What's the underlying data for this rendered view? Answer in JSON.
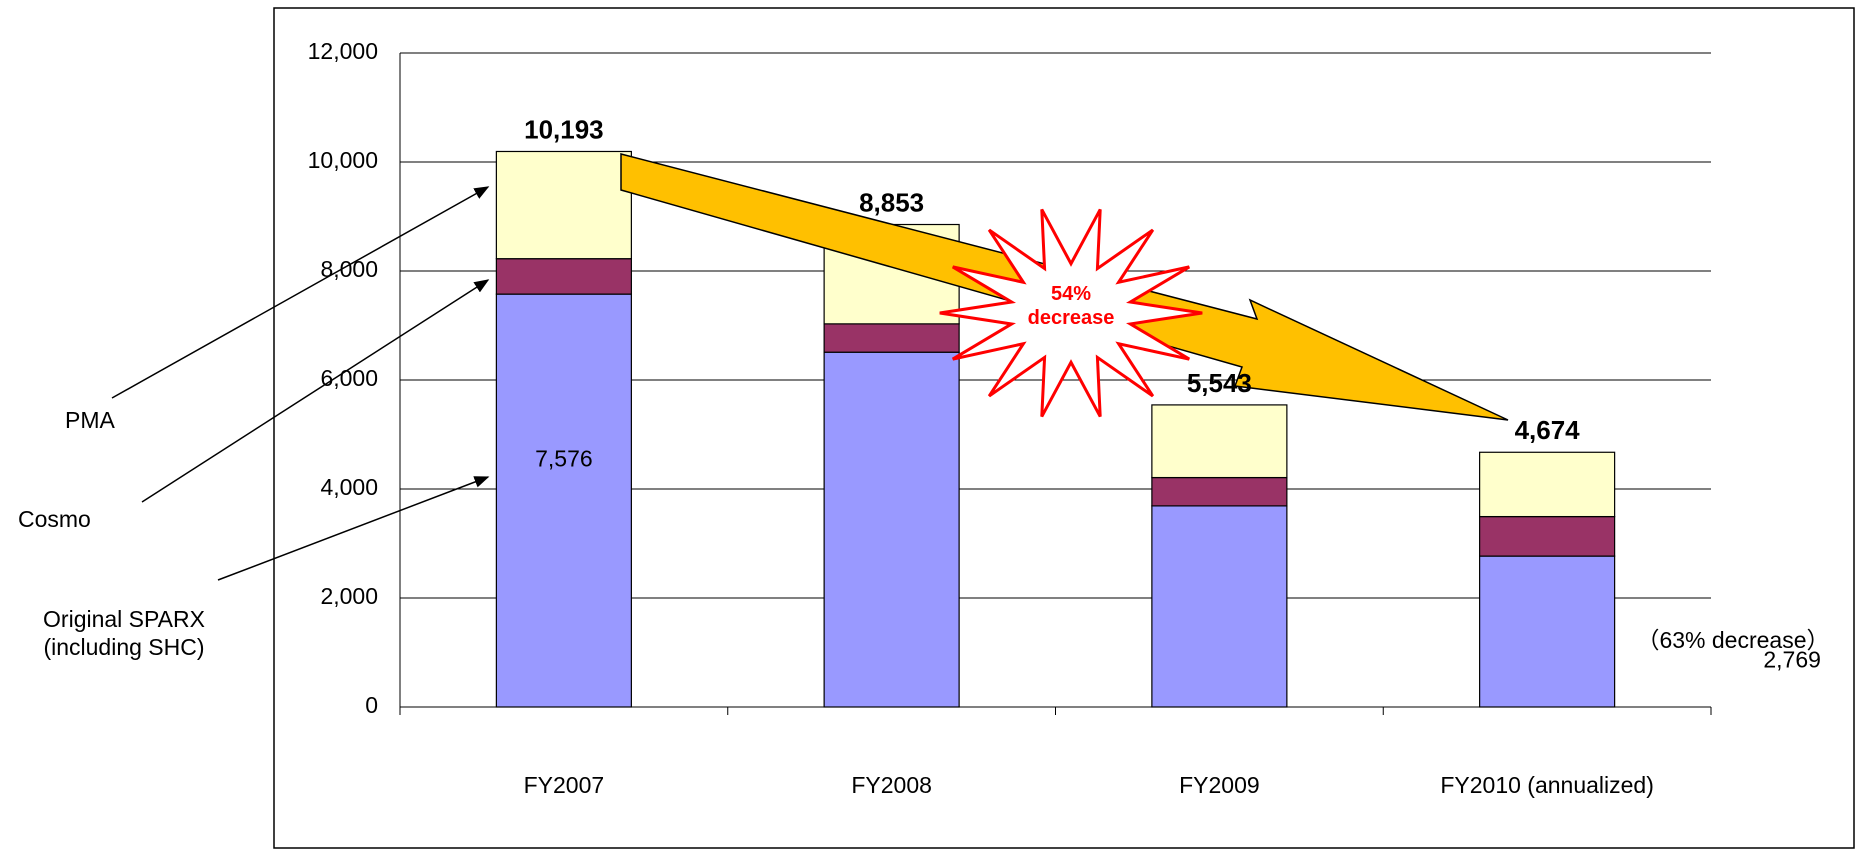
{
  "chart_data": {
    "type": "stacked_bar",
    "categories": [
      "FY2007",
      "FY2008",
      "FY2009",
      "FY2010 (annualized)"
    ],
    "series": [
      {
        "name": "Original SPARX (including SHC)",
        "color": "#9999ff",
        "values": [
          7576,
          6510,
          3690,
          2769
        ],
        "value_labels": [
          "7,576",
          null,
          null,
          "2,769"
        ]
      },
      {
        "name": "Cosmo",
        "color": "#993366",
        "values": [
          650,
          520,
          520,
          725
        ]
      },
      {
        "name": "PMA",
        "color": "#ffffcc",
        "values": [
          1967,
          1823,
          1333,
          1180
        ]
      }
    ],
    "totals": [
      10193,
      8853,
      5543,
      4674
    ],
    "total_labels": [
      "10,193",
      "8,853",
      "5,543",
      "4,674"
    ],
    "annotations": [
      "54% decrease",
      "（63% decrease）"
    ],
    "ylim": [
      0,
      12000
    ],
    "yticks": [
      0,
      {
        "value": 2000,
        "label": "2,000"
      },
      {
        "value": 4000,
        "label": "4,000"
      },
      {
        "value": 6000,
        "label": "6,000"
      },
      {
        "value": 8000,
        "label": "8,000"
      },
      {
        "value": 10000,
        "label": "10,000"
      },
      {
        "value": 12000,
        "label": "12,000"
      }
    ],
    "grid": true
  }
}
